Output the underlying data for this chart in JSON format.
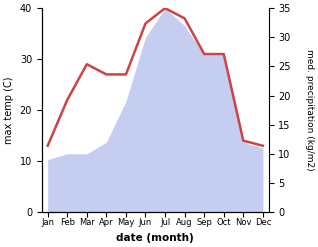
{
  "months": [
    "Jan",
    "Feb",
    "Mar",
    "Apr",
    "May",
    "Jun",
    "Jul",
    "Aug",
    "Sep",
    "Oct",
    "Nov",
    "Dec"
  ],
  "temperature": [
    13,
    22,
    29,
    27,
    27,
    37,
    40,
    38,
    31,
    31,
    14,
    13
  ],
  "precipitation": [
    9,
    10,
    10,
    12,
    19,
    30,
    35,
    32,
    27,
    27,
    12,
    11
  ],
  "temp_color": "#cc4444",
  "precip_color_fill": "#c5cef0",
  "ylabel_left": "max temp (C)",
  "ylabel_right": "med. precipitation (kg/m2)",
  "xlabel": "date (month)",
  "ylim_left": [
    0,
    40
  ],
  "ylim_right": [
    0,
    35
  ],
  "yticks_left": [
    0,
    10,
    20,
    30,
    40
  ],
  "yticks_right": [
    0,
    5,
    10,
    15,
    20,
    25,
    30,
    35
  ],
  "background_color": "#ffffff"
}
